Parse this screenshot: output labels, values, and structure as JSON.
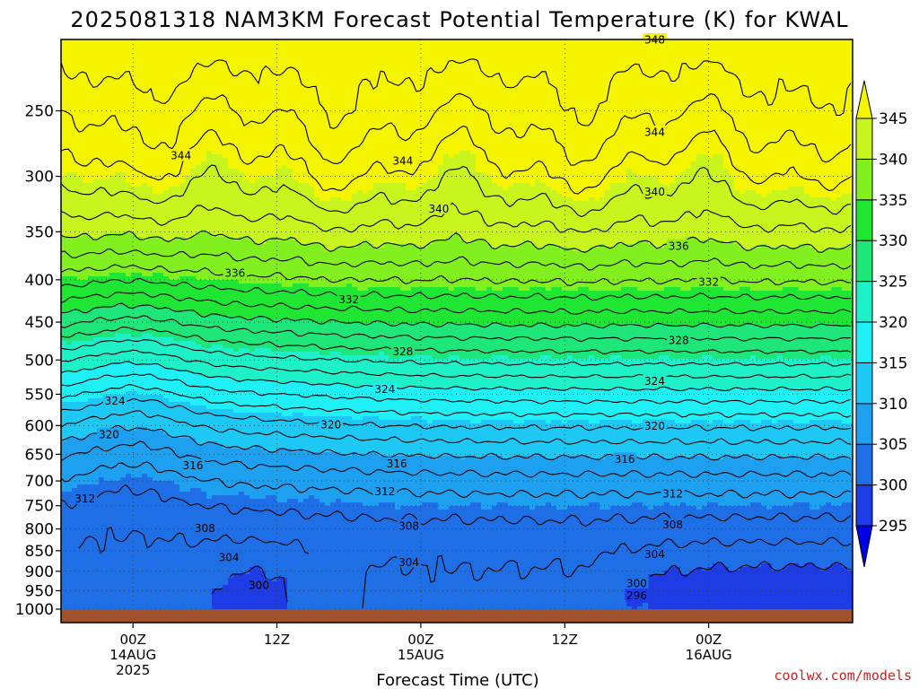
{
  "page": {
    "title": "2025081318 NAM3KM Forecast Potential Temperature (K) for KWAL",
    "credit": "coolwx.com/models"
  },
  "chart_data": {
    "type": "heatmap",
    "title": "2025081318 NAM3KM Forecast Potential Temperature (K) for KWAL",
    "xlabel": "Forecast Time (UTC)",
    "ylabel": "",
    "y_scale": "log-pressure (hPa), decreasing upward",
    "ylim": [
      1000,
      200
    ],
    "xlim": [
      "2025-08-13 18Z",
      "2025-08-16 12Z"
    ],
    "x_ticks": [
      {
        "hours": 6,
        "lines": [
          "00Z",
          "14AUG",
          "2025"
        ]
      },
      {
        "hours": 18,
        "lines": [
          "12Z"
        ]
      },
      {
        "hours": 30,
        "lines": [
          "00Z",
          "15AUG"
        ]
      },
      {
        "hours": 42,
        "lines": [
          "12Z"
        ]
      },
      {
        "hours": 54,
        "lines": [
          "00Z",
          "16AUG"
        ]
      }
    ],
    "y_ticks": [
      250,
      300,
      350,
      400,
      450,
      500,
      550,
      600,
      650,
      700,
      750,
      800,
      850,
      900,
      950,
      1000
    ],
    "colorbar": {
      "levels": [
        295,
        300,
        305,
        310,
        315,
        320,
        325,
        330,
        335,
        340,
        345
      ],
      "colors": [
        "#0000e6",
        "#1e3ce6",
        "#1e6ee6",
        "#1ea0f0",
        "#1ec8f5",
        "#1ef0f5",
        "#1ef0c8",
        "#1ee678",
        "#1ee632",
        "#82f01e",
        "#c8f51e",
        "#f5f500"
      ],
      "extend": "both"
    },
    "contour_labels": [
      {
        "value": 348,
        "hours": 49.5,
        "p": 205
      },
      {
        "value": 344,
        "hours": 49.5,
        "p": 265
      },
      {
        "value": 344,
        "hours": 10.0,
        "p": 283
      },
      {
        "value": 344,
        "hours": 28.5,
        "p": 287
      },
      {
        "value": 340,
        "hours": 49.5,
        "p": 313
      },
      {
        "value": 340,
        "hours": 31.5,
        "p": 328
      },
      {
        "value": 336,
        "hours": 51.5,
        "p": 364
      },
      {
        "value": 336,
        "hours": 14.5,
        "p": 392
      },
      {
        "value": 332,
        "hours": 54.0,
        "p": 402
      },
      {
        "value": 332,
        "hours": 24.0,
        "p": 422
      },
      {
        "value": 328,
        "hours": 51.5,
        "p": 473
      },
      {
        "value": 328,
        "hours": 28.5,
        "p": 488
      },
      {
        "value": 324,
        "hours": 49.5,
        "p": 530
      },
      {
        "value": 324,
        "hours": 27.0,
        "p": 542
      },
      {
        "value": 324,
        "hours": 4.5,
        "p": 560
      },
      {
        "value": 320,
        "hours": 22.5,
        "p": 598
      },
      {
        "value": 320,
        "hours": 49.5,
        "p": 600
      },
      {
        "value": 320,
        "hours": 4.0,
        "p": 615
      },
      {
        "value": 316,
        "hours": 47.0,
        "p": 658
      },
      {
        "value": 316,
        "hours": 28.0,
        "p": 667
      },
      {
        "value": 316,
        "hours": 11.0,
        "p": 670
      },
      {
        "value": 312,
        "hours": 27.0,
        "p": 720
      },
      {
        "value": 312,
        "hours": 51.0,
        "p": 725
      },
      {
        "value": 312,
        "hours": 2.0,
        "p": 735
      },
      {
        "value": 308,
        "hours": 29.0,
        "p": 793
      },
      {
        "value": 308,
        "hours": 51.0,
        "p": 790
      },
      {
        "value": 308,
        "hours": 12.0,
        "p": 798
      },
      {
        "value": 304,
        "hours": 49.5,
        "p": 858
      },
      {
        "value": 304,
        "hours": 14.0,
        "p": 865
      },
      {
        "value": 304,
        "hours": 29.0,
        "p": 877
      },
      {
        "value": 300,
        "hours": 48.0,
        "p": 930
      },
      {
        "value": 300,
        "hours": 16.5,
        "p": 935
      },
      {
        "value": 296,
        "hours": 48.0,
        "p": 962
      }
    ]
  }
}
